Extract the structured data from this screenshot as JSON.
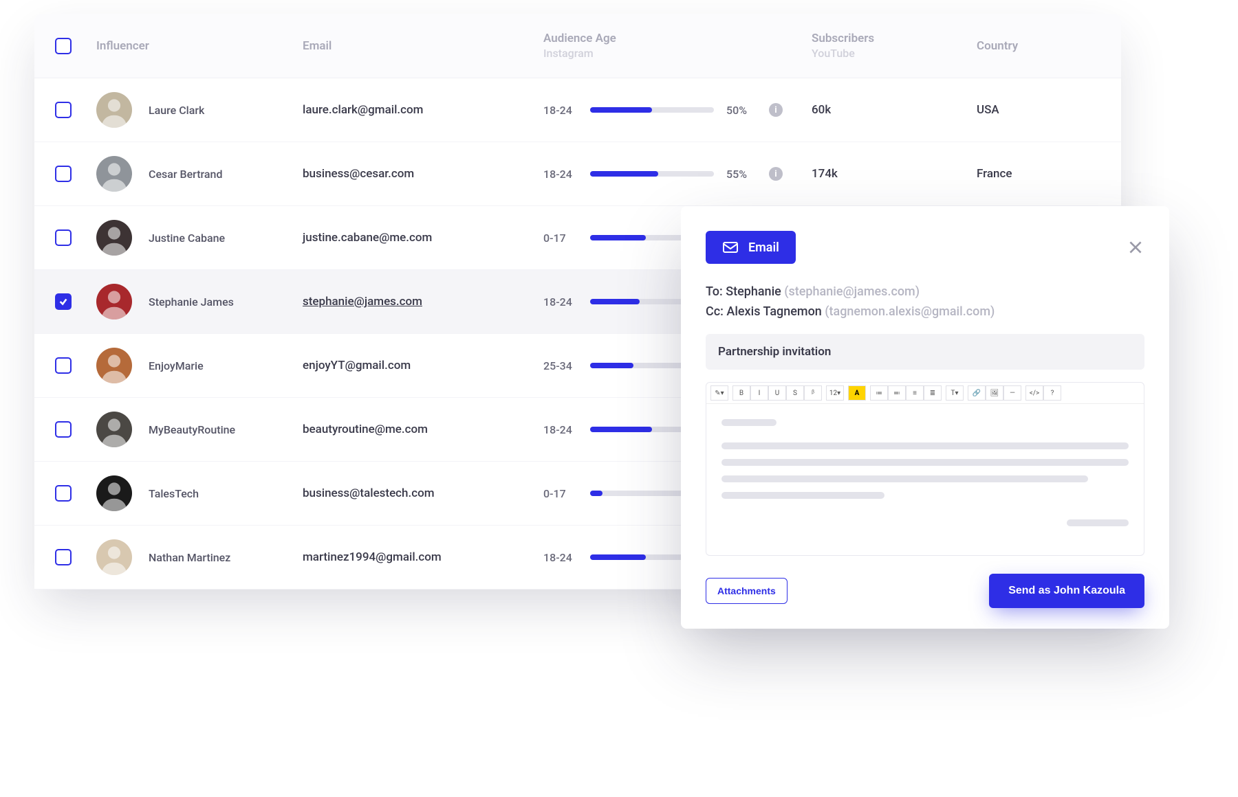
{
  "colors": {
    "primary": "#2e2ee6",
    "bar_bg": "#e3e3ea",
    "header_text": "#a9a9b8",
    "header_sub": "#d0d0da",
    "text": "#3a3a4a",
    "muted": "#b5b5c2",
    "row_selected_bg": "#f5f5f8",
    "panel_bg": "#ffffff"
  },
  "table": {
    "headers": {
      "influencer": "Influencer",
      "email": "Email",
      "audience_age": "Audience Age",
      "audience_age_sub": "Instagram",
      "subscribers": "Subscribers",
      "subscribers_sub": "YouTube",
      "country": "Country"
    },
    "rows": [
      {
        "checked": false,
        "name": "Laure Clark",
        "email": "laure.clark@gmail.com",
        "age_range": "18-24",
        "pct": 50,
        "pct_label": "50%",
        "show_info": true,
        "subscribers": "60k",
        "country": "USA",
        "avatar_bg": "#c2b7a0"
      },
      {
        "checked": false,
        "name": "Cesar Bertrand",
        "email": "business@cesar.com",
        "age_range": "18-24",
        "pct": 55,
        "pct_label": "55%",
        "show_info": true,
        "subscribers": "174k",
        "country": "France",
        "avatar_bg": "#8f949a"
      },
      {
        "checked": false,
        "name": "Justine Cabane",
        "email": "justine.cabane@me.com",
        "age_range": "0-17",
        "pct": 45,
        "pct_label": "",
        "show_info": false,
        "subscribers": "",
        "country": "",
        "avatar_bg": "#3d3334"
      },
      {
        "checked": true,
        "name": "Stephanie James",
        "email": "stephanie@james.com",
        "email_underline": true,
        "age_range": "18-24",
        "pct": 40,
        "pct_label": "",
        "show_info": false,
        "subscribers": "",
        "country": "",
        "avatar_bg": "#a8282c"
      },
      {
        "checked": false,
        "name": "EnjoyMarie",
        "email": "enjoyYT@gmail.com",
        "age_range": "25-34",
        "pct": 35,
        "pct_label": "",
        "show_info": false,
        "subscribers": "",
        "country": "",
        "avatar_bg": "#b56a3a"
      },
      {
        "checked": false,
        "name": "MyBeautyRoutine",
        "email": "beautyroutine@me.com",
        "age_range": "18-24",
        "pct": 50,
        "pct_label": "",
        "show_info": false,
        "subscribers": "",
        "country": "",
        "avatar_bg": "#4b4844"
      },
      {
        "checked": false,
        "name": "TalesTech",
        "email": "business@talestech.com",
        "age_range": "0-17",
        "pct": 10,
        "pct_label": "",
        "show_info": false,
        "subscribers": "",
        "country": "",
        "avatar_bg": "#1a1a1a"
      },
      {
        "checked": false,
        "name": "Nathan Martinez",
        "email": "martinez1994@gmail.com",
        "age_range": "18-24",
        "pct": 45,
        "pct_label": "",
        "show_info": false,
        "subscribers": "",
        "country": "",
        "avatar_bg": "#d8c8b0"
      }
    ]
  },
  "composer": {
    "pill_label": "Email",
    "to_label": "To:",
    "to_name": "Stephanie",
    "to_email": "(stephanie@james.com)",
    "cc_label": "Cc:",
    "cc_name": "Alexis Tagnemon",
    "cc_email": "(tagnemon.alexis@gmail.com)",
    "subject": "Partnership invitation",
    "attachments_label": "Attachments",
    "send_label": "Send as John Kazoula",
    "toolbar": [
      "✎▾",
      "B",
      "I",
      "U",
      "S",
      "ᵝ",
      "12▾",
      "A",
      "≔",
      "≕",
      "≡",
      "≣",
      "T▾",
      "🔗",
      "🖼",
      "—",
      "</>",
      "?"
    ]
  }
}
